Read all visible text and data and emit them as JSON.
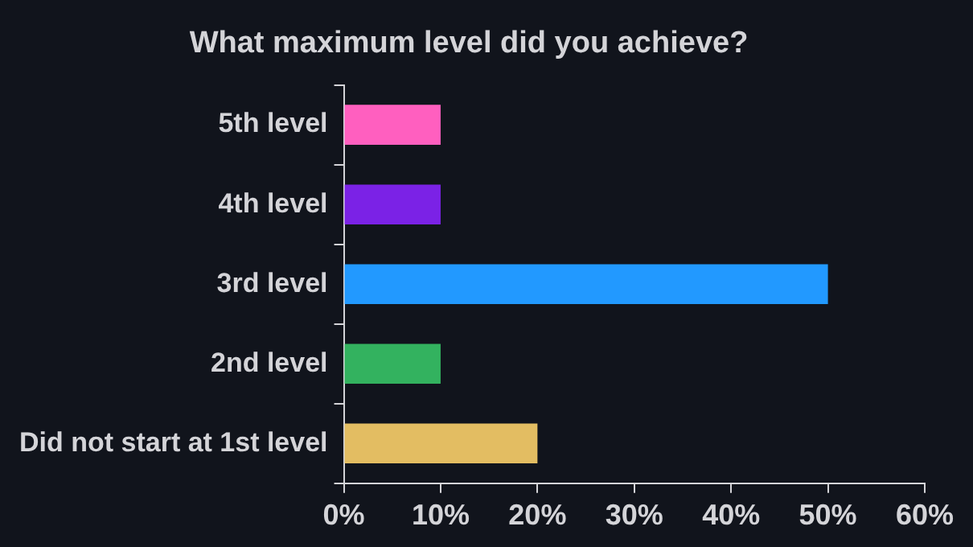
{
  "chart_data": {
    "type": "bar",
    "orientation": "horizontal",
    "title": "What maximum level did you achieve?",
    "categories": [
      "5th level",
      "4th level",
      "3rd level",
      "2nd level",
      "Did not start at 1st level"
    ],
    "values": [
      10,
      10,
      50,
      10,
      20
    ],
    "colors": [
      "#ff5fbf",
      "#7b22e6",
      "#2299ff",
      "#33b25f",
      "#e3bd62"
    ],
    "xlim": [
      0,
      60
    ],
    "xticks": [
      {
        "value": 0,
        "label": "0%"
      },
      {
        "value": 10,
        "label": "10%"
      },
      {
        "value": 20,
        "label": "20%"
      },
      {
        "value": 30,
        "label": "30%"
      },
      {
        "value": 40,
        "label": "40%"
      },
      {
        "value": 50,
        "label": "50%"
      },
      {
        "value": 60,
        "label": "60%"
      }
    ],
    "grid": false,
    "legend": false
  }
}
